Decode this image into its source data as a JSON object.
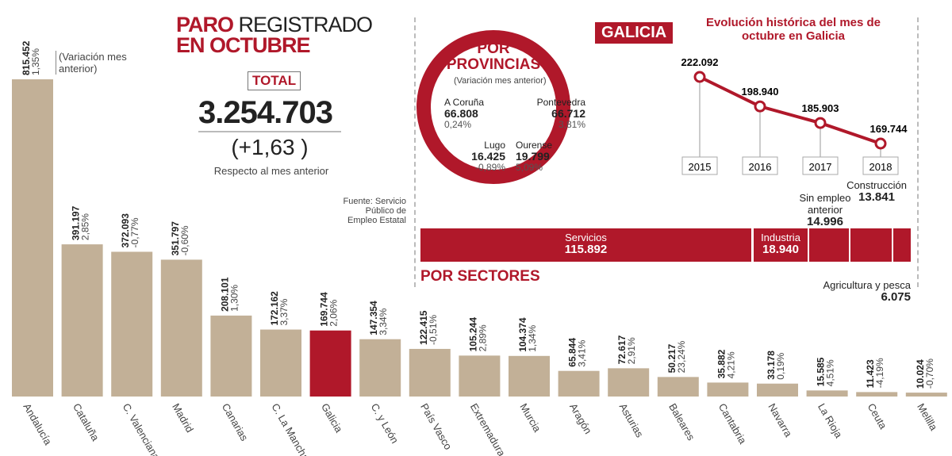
{
  "header": {
    "title_bold": "PARO",
    "title_thin": "REGISTRADO",
    "title_line2": "EN OCTUBRE",
    "total_label": "TOTAL",
    "total_value": "3.254.703",
    "variation": "(+1,63 )",
    "variation_note": "Respecto al mes anterior",
    "legend_note": "(Variación mes anterior)"
  },
  "galicia": {
    "label": "GALICIA",
    "provinces_title": "POR PROVINCIAS",
    "provinces_note": "(Variación mes anterior)",
    "provinces": [
      {
        "name": "A Coruña",
        "value": "66.808",
        "pct": "0,24%"
      },
      {
        "name": "Pontevedra",
        "value": "66.712",
        "pct": "3,81%"
      },
      {
        "name": "Lugo",
        "value": "16.425",
        "pct": "-0,89%"
      },
      {
        "name": "Ourense",
        "value": "19.799",
        "pct": "5,09%"
      }
    ],
    "source": "Fuente: Servicio Público de Empleo Estatal",
    "sectors_title": "POR SECTORES",
    "sectors": [
      {
        "name": "Servicios",
        "value": "115.892"
      },
      {
        "name": "Industria",
        "value": "18.940"
      },
      {
        "name": "Sin empleo anterior",
        "value": "14.996"
      },
      {
        "name": "Construcción",
        "value": "13.841"
      },
      {
        "name": "Agricultura y pesca",
        "value": "6.075"
      }
    ]
  },
  "chart_data": [
    {
      "type": "bar",
      "title": "",
      "categories": [
        "Andalucía",
        "Cataluña",
        "C. Valenciana",
        "Madrid",
        "Canarias",
        "C. La Mancha",
        "Galicia",
        "C. y León",
        "País Vasco",
        "Extremadura",
        "Murcia",
        "Aragón",
        "Asturias",
        "Baleares",
        "Cantabria",
        "Navarra",
        "La Rioja",
        "Ceuta",
        "Melilla"
      ],
      "values": [
        815452,
        391197,
        372093,
        351797,
        208101,
        172162,
        169744,
        147354,
        122415,
        105244,
        104374,
        65844,
        72617,
        50217,
        35882,
        33178,
        15585,
        11423,
        10024
      ],
      "value_labels": [
        "815.452",
        "391.197",
        "372.093",
        "351.797",
        "208.101",
        "172.162",
        "169.744",
        "147.354",
        "122.415",
        "105.244",
        "104.374",
        "65.844",
        "72.617",
        "50.217",
        "35.882",
        "33.178",
        "15.585",
        "11.423",
        "10.024"
      ],
      "pct_labels": [
        "1,35%",
        "2,85%",
        "-0,77%",
        "-0,60%",
        "1,30%",
        "3,37%",
        "2,06%",
        "3,34%",
        "-0,51%",
        "2,89%",
        "1,34%",
        "3,41%",
        "2,91%",
        "23,24%",
        "4,21%",
        "0,19%",
        "4,51%",
        "-4,19%",
        "-0,70%"
      ],
      "highlight": "Galicia",
      "colors": {
        "bar": "#c2b097",
        "highlight": "#b0182a"
      }
    },
    {
      "type": "line",
      "title": "Evolución histórica del mes de octubre en Galicia",
      "x": [
        "2015",
        "2016",
        "2017",
        "2018"
      ],
      "values": [
        222092,
        198940,
        185903,
        169744
      ],
      "value_labels": [
        "222.092",
        "198.940",
        "185.903",
        "169.744"
      ],
      "color": "#b0182a"
    }
  ]
}
